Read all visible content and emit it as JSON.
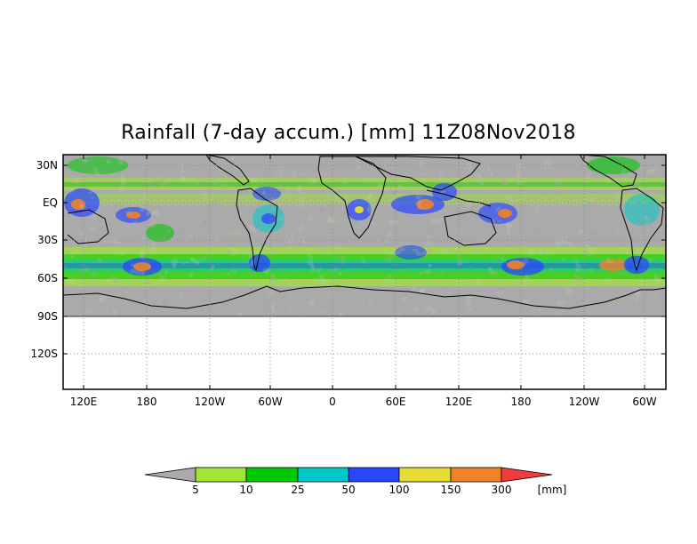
{
  "map": {
    "title": "Rainfall (7-day accum.) [mm] 11Z08Nov2018",
    "lat_labels": [
      "30N",
      "EQ",
      "30S",
      "60S",
      "90S",
      "120S"
    ],
    "lon_labels": [
      "120E",
      "180",
      "120W",
      "60W",
      "0",
      "60E",
      "120E",
      "180",
      "120W",
      "60W"
    ],
    "data_extent": {
      "lat_top": "30N",
      "lat_bottom": "90S"
    },
    "background_color": "#aaaaaa",
    "grid": "dotted"
  },
  "colorbar": {
    "unit": "[mm]",
    "levels": [
      "5",
      "10",
      "25",
      "50",
      "100",
      "150",
      "300"
    ],
    "colors": [
      "#aaaaaa",
      "#a0e632",
      "#00c800",
      "#00c8c8",
      "#2846ff",
      "#e6dc32",
      "#f08228",
      "#f03c3c"
    ]
  }
}
